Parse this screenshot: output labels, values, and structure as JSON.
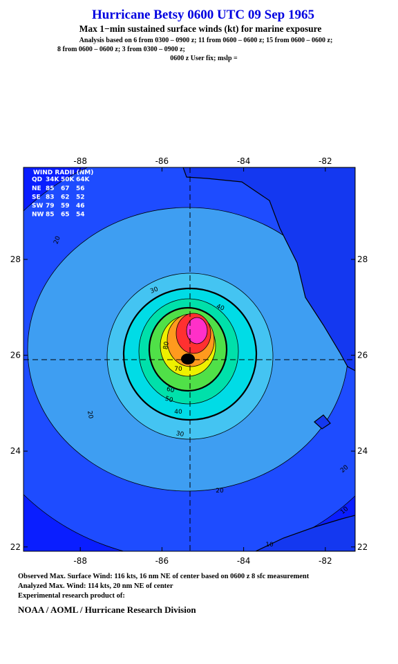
{
  "header": {
    "title": "Hurricane Betsy 0600 UTC 09 Sep 1965",
    "subtitle": "Max 1−min sustained surface winds (kt) for marine exposure",
    "analysis": [
      "Analysis based on  6 from 0300 – 0900 z;  11 from 0600 – 0600 z;  15 from 0600 – 0600 z;",
      "8 from 0600 – 0600 z;  3 from 0300 – 0900 z;",
      "0600 z User fix; mslp ="
    ]
  },
  "map": {
    "xlim": [
      -89.39,
      -81.27
    ],
    "ylim": [
      21.91,
      29.92
    ],
    "xticks": [
      -88,
      -86,
      -84,
      -82
    ],
    "yticks": [
      22,
      24,
      26,
      28
    ],
    "contours": [
      {
        "level": 10,
        "color": "#1e4cff"
      },
      {
        "level": 20,
        "color": "#3e9ef2"
      },
      {
        "level": 30,
        "color": "#44c4f2"
      },
      {
        "level": 40,
        "color": "#00dce6"
      },
      {
        "level": 50,
        "color": "#00e0aa"
      },
      {
        "level": 60,
        "color": "#50e048"
      },
      {
        "level": 70,
        "color": "#eef000"
      },
      {
        "level": 80,
        "color": "#ff9a1e"
      },
      {
        "level": 90,
        "color": "#ff3030"
      },
      {
        "level": 100,
        "color": "#ff30c8"
      }
    ],
    "contour_labels": [
      20,
      20,
      20,
      20,
      30,
      30,
      40,
      40,
      50,
      60,
      70,
      80,
      10,
      10
    ]
  },
  "wind_radii": {
    "title": "WIND RADII (NM)",
    "columns": [
      "QD",
      "34K",
      "50K",
      "64K"
    ],
    "rows": [
      [
        "NE",
        85,
        67,
        56
      ],
      [
        "SE",
        83,
        62,
        52
      ],
      [
        "SW",
        79,
        59,
        46
      ],
      [
        "NW",
        85,
        65,
        54
      ]
    ]
  },
  "footer": {
    "lines": [
      "Observed Max. Surface Wind: 116 kts, 16 nm NE of center based on 0600 z 8 sfc measurement",
      "Analyzed Max. Wind: 114 kts, 20 nm NE of center",
      "Experimental research product of:"
    ],
    "org": "NOAA / AOML / Hurricane Research Division"
  }
}
